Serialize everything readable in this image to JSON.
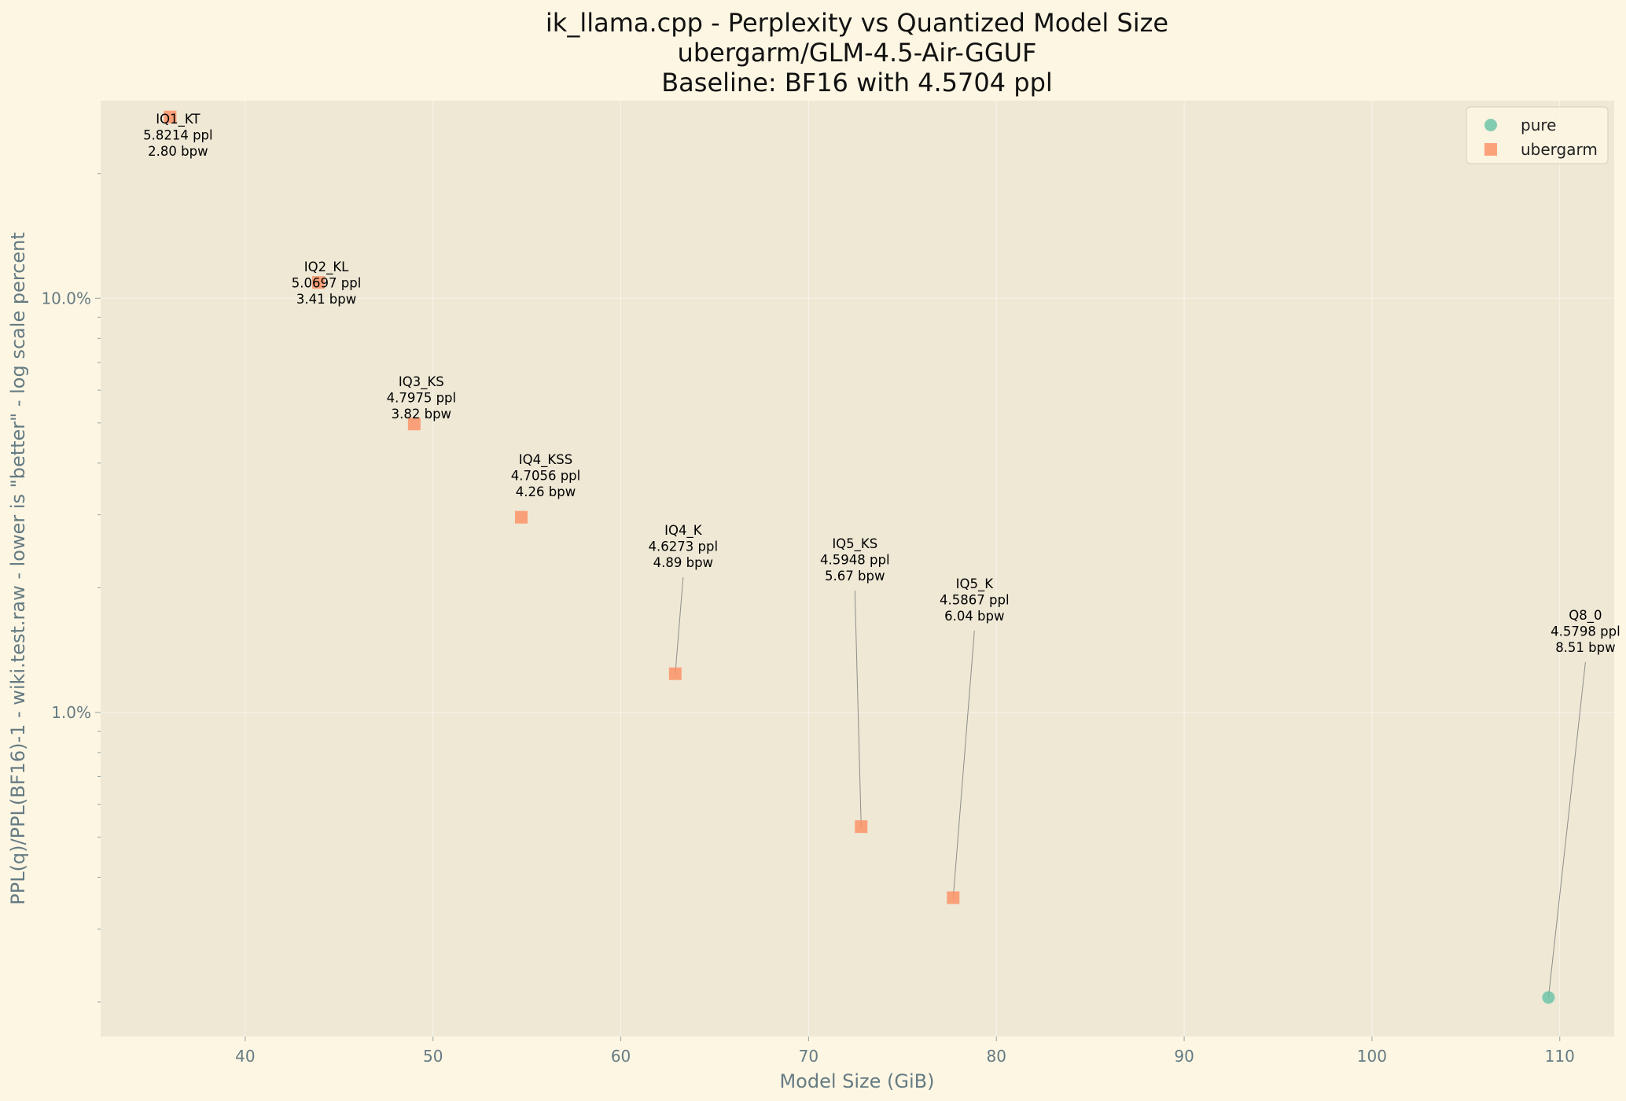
{
  "chart_data": {
    "type": "scatter",
    "title": [
      "ik_llama.cpp - Perplexity vs Quantized Model Size",
      "ubergarm/GLM-4.5-Air-GGUF",
      "Baseline: BF16 with 4.5704 ppl"
    ],
    "xlabel": "Model Size (GiB)",
    "ylabel": "PPL(q)/PPL(BF16)-1 - wiki.test.raw - lower is \"better\" - log scale percent",
    "xlim": [
      32.3,
      112.9
    ],
    "ylim": [
      0.165,
      30.0
    ],
    "y_scale": "log",
    "x_ticks": [
      "40",
      "50",
      "60",
      "70",
      "80",
      "90",
      "100",
      "110"
    ],
    "y_ticks": [
      "1.0%",
      "10.0%"
    ],
    "grid": true,
    "legend_position": "top-right",
    "colors": {
      "pure": "#66c2a5",
      "ubergarm": "#fc8d62"
    },
    "series": [
      {
        "name": "pure",
        "marker": "circle",
        "color": "#66c2a5",
        "points": [
          {
            "x": 109.4,
            "y": 0.205,
            "label": [
              "Q8_0",
              "4.5798 ppl",
              "8.51 bpw"
            ]
          }
        ]
      },
      {
        "name": "ubergarm",
        "marker": "square",
        "color": "#fc8d62",
        "points": [
          {
            "x": 36.0,
            "y": 27.4,
            "label": [
              "IQ1_KT",
              "5.8214 ppl",
              "2.80 bpw"
            ]
          },
          {
            "x": 43.9,
            "y": 10.92,
            "label": [
              "IQ2_KL",
              "5.0697 ppl",
              "3.41 bpw"
            ]
          },
          {
            "x": 49.0,
            "y": 4.97,
            "label": [
              "IQ3_KS",
              "4.7975 ppl",
              "3.82 bpw"
            ]
          },
          {
            "x": 54.7,
            "y": 2.96,
            "label": [
              "IQ4_KSS",
              "4.7056 ppl",
              "4.26 bpw"
            ]
          },
          {
            "x": 62.9,
            "y": 1.24,
            "label": [
              "IQ4_K",
              "4.6273 ppl",
              "4.89 bpw"
            ]
          },
          {
            "x": 72.8,
            "y": 0.53,
            "label": [
              "IQ5_KS",
              "4.5948 ppl",
              "5.67 bpw"
            ]
          },
          {
            "x": 77.7,
            "y": 0.357,
            "label": [
              "IQ5_K",
              "4.5867 ppl",
              "6.04 bpw"
            ]
          }
        ]
      }
    ]
  }
}
